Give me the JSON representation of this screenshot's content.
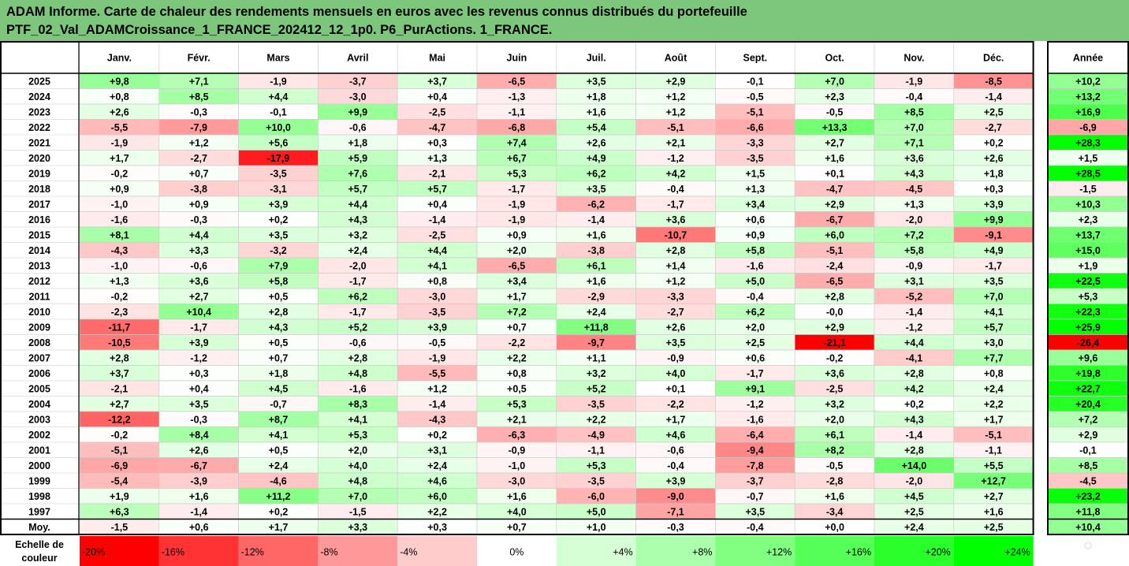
{
  "title": {
    "line1": "ADAM Informe. Carte de chaleur des rendements mensuels en euros avec les revenus connus distribués du portefeuille",
    "line2": "PTF_02_Val_ADAMCroissance_1_FRANCE_202412_12_1p0. P6_PurActions. 1_FRANCE."
  },
  "colors": {
    "title_bg": "#7dc77d",
    "strong_red": "#ff0000",
    "neutral": "#ffffff",
    "strong_green": "#00ff00",
    "grid": "#c8c8c8",
    "border": "#000000"
  },
  "chart_data": {
    "type": "heatmap",
    "header_corner": "",
    "months": [
      "Janv.",
      "Févr.",
      "Mars",
      "Avril",
      "Mai",
      "Juin",
      "Juil.",
      "Août",
      "Sept.",
      "Oct.",
      "Nov.",
      "Déc."
    ],
    "annual_label": "Année",
    "average_label": "Moy.",
    "color_scale_min": -20,
    "color_scale_max": 24,
    "rows": [
      {
        "year": "2025",
        "months": [
          "+9,8",
          "+7,1",
          "-1,9",
          "-3,7",
          "+3,7",
          "-6,5",
          "+3,5",
          "+2,9",
          "-0,1",
          "+7,0",
          "-1,9",
          "-8,5"
        ],
        "annual": "+10,2"
      },
      {
        "year": "2024",
        "months": [
          "+0,8",
          "+8,5",
          "+4,4",
          "-3,0",
          "+0,4",
          "-1,3",
          "+1,8",
          "+1,2",
          "-0,5",
          "+2,3",
          "-0,4",
          "-1,4"
        ],
        "annual": "+13,2"
      },
      {
        "year": "2023",
        "months": [
          "+2,6",
          "-0,3",
          "-0,1",
          "+9,9",
          "-2,5",
          "-1,1",
          "+1,6",
          "+1,2",
          "-5,1",
          "-0,5",
          "+8,5",
          "+2,5"
        ],
        "annual": "+16,9"
      },
      {
        "year": "2022",
        "months": [
          "-5,5",
          "-7,9",
          "+10,0",
          "-0,6",
          "-4,7",
          "-6,8",
          "+5,4",
          "-5,1",
          "-6,6",
          "+13,3",
          "+7,0",
          "-2,7"
        ],
        "annual": "-6,9"
      },
      {
        "year": "2021",
        "months": [
          "-1,9",
          "+1,2",
          "+5,6",
          "+1,8",
          "+0,3",
          "+7,4",
          "+2,6",
          "+2,1",
          "-3,3",
          "+2,7",
          "+7,1",
          "+0,2"
        ],
        "annual": "+28,3"
      },
      {
        "year": "2020",
        "months": [
          "+1,7",
          "-2,7",
          "-17,9",
          "+5,9",
          "+1,3",
          "+6,7",
          "+4,9",
          "-1,2",
          "-3,5",
          "+1,6",
          "+3,6",
          "+2,6"
        ],
        "annual": "+1,5"
      },
      {
        "year": "2019",
        "months": [
          "-0,2",
          "+0,7",
          "-3,5",
          "+7,6",
          "-2,1",
          "+5,3",
          "+6,2",
          "+4,2",
          "+1,5",
          "+0,1",
          "+4,3",
          "+1,8"
        ],
        "annual": "+28,5"
      },
      {
        "year": "2018",
        "months": [
          "+0,9",
          "-3,8",
          "-3,1",
          "+5,7",
          "+5,7",
          "-1,7",
          "+3,5",
          "-0,4",
          "+1,3",
          "-4,7",
          "-4,5",
          "+0,3"
        ],
        "annual": "-1,5"
      },
      {
        "year": "2017",
        "months": [
          "-1,0",
          "+0,9",
          "+3,9",
          "+4,4",
          "+0,4",
          "-1,9",
          "-6,2",
          "-1,7",
          "+3,4",
          "+2,9",
          "+1,3",
          "+3,9"
        ],
        "annual": "+10,3"
      },
      {
        "year": "2016",
        "months": [
          "-1,6",
          "-0,3",
          "+0,2",
          "+4,3",
          "-1,4",
          "-1,9",
          "-1,4",
          "+3,6",
          "+0,6",
          "-6,7",
          "-2,0",
          "+9,9"
        ],
        "annual": "+2,3"
      },
      {
        "year": "2015",
        "months": [
          "+8,1",
          "+4,4",
          "+3,5",
          "+3,2",
          "-2,5",
          "+0,9",
          "+1,6",
          "-10,7",
          "+0,9",
          "+6,0",
          "+7,2",
          "-9,1"
        ],
        "annual": "+13,7"
      },
      {
        "year": "2014",
        "months": [
          "-4,3",
          "+3,3",
          "-3,2",
          "+2,4",
          "+4,4",
          "+2,0",
          "-3,8",
          "+2,8",
          "+5,8",
          "-5,1",
          "+5,8",
          "+4,9"
        ],
        "annual": "+15,0"
      },
      {
        "year": "2013",
        "months": [
          "-1,0",
          "-0,6",
          "+7,9",
          "-2,0",
          "+4,1",
          "-6,5",
          "+6,1",
          "+1,4",
          "-1,6",
          "-2,4",
          "-0,9",
          "-1,7"
        ],
        "annual": "+1,9"
      },
      {
        "year": "2012",
        "months": [
          "+1,3",
          "+3,6",
          "+5,8",
          "-1,7",
          "+0,8",
          "+3,4",
          "+1,6",
          "+1,2",
          "+5,0",
          "-6,5",
          "+3,1",
          "+3,5"
        ],
        "annual": "+22,5"
      },
      {
        "year": "2011",
        "months": [
          "-0,2",
          "+2,7",
          "+0,5",
          "+6,2",
          "-3,0",
          "+1,7",
          "-2,9",
          "-3,3",
          "-0,4",
          "+2,8",
          "-5,2",
          "+7,0"
        ],
        "annual": "+5,3"
      },
      {
        "year": "2010",
        "months": [
          "-2,3",
          "+10,4",
          "+2,8",
          "-1,7",
          "-3,5",
          "+7,2",
          "+2,4",
          "-2,7",
          "+6,2",
          "-0,0",
          "-1,4",
          "+4,1"
        ],
        "annual": "+22,3"
      },
      {
        "year": "2009",
        "months": [
          "-11,7",
          "-1,7",
          "+4,3",
          "+5,2",
          "+3,9",
          "+0,7",
          "+11,8",
          "+2,6",
          "+2,0",
          "+2,9",
          "-1,2",
          "+5,7"
        ],
        "annual": "+25,9"
      },
      {
        "year": "2008",
        "months": [
          "-10,5",
          "+3,9",
          "+0,5",
          "-0,6",
          "-0,5",
          "-2,2",
          "-9,7",
          "+3,5",
          "+2,5",
          "-21,1",
          "+4,4",
          "+3,0"
        ],
        "annual": "-26,4"
      },
      {
        "year": "2007",
        "months": [
          "+2,8",
          "-1,2",
          "+0,7",
          "+2,8",
          "-1,9",
          "+2,2",
          "+1,1",
          "-0,9",
          "+0,6",
          "-0,2",
          "-4,1",
          "+7,7"
        ],
        "annual": "+9,6"
      },
      {
        "year": "2006",
        "months": [
          "+3,7",
          "+0,3",
          "+1,8",
          "+4,8",
          "-5,5",
          "+0,8",
          "+3,2",
          "+4,0",
          "-1,7",
          "+3,6",
          "+2,8",
          "+0,8"
        ],
        "annual": "+19,8"
      },
      {
        "year": "2005",
        "months": [
          "-2,1",
          "+0,4",
          "+4,5",
          "-1,6",
          "+1,2",
          "+0,5",
          "+5,2",
          "+0,1",
          "+9,1",
          "-2,5",
          "+4,2",
          "+2,4"
        ],
        "annual": "+22,7"
      },
      {
        "year": "2004",
        "months": [
          "+2,7",
          "+3,5",
          "-0,7",
          "+8,3",
          "-1,4",
          "+5,3",
          "-3,5",
          "-2,2",
          "-1,2",
          "+3,2",
          "+0,2",
          "+2,2"
        ],
        "annual": "+20,4"
      },
      {
        "year": "2003",
        "months": [
          "-12,2",
          "-0,3",
          "+8,7",
          "+4,1",
          "-4,3",
          "+2,1",
          "+2,2",
          "+1,7",
          "-1,6",
          "+2,0",
          "+4,3",
          "+1,7"
        ],
        "annual": "+7,2"
      },
      {
        "year": "2002",
        "months": [
          "-0,2",
          "+8,4",
          "+4,1",
          "+5,3",
          "+0,2",
          "-6,3",
          "-4,9",
          "+4,6",
          "-6,4",
          "+6,1",
          "-1,4",
          "-5,1"
        ],
        "annual": "+2,9"
      },
      {
        "year": "2001",
        "months": [
          "-5,1",
          "+2,6",
          "+0,5",
          "+2,0",
          "+3,1",
          "-0,9",
          "-1,1",
          "-0,6",
          "-9,4",
          "+8,2",
          "+2,8",
          "-1,1"
        ],
        "annual": "-0,1"
      },
      {
        "year": "2000",
        "months": [
          "-6,9",
          "-6,7",
          "+2,4",
          "+4,0",
          "+2,4",
          "-1,0",
          "+5,3",
          "-0,4",
          "-7,8",
          "-0,5",
          "+14,0",
          "+5,5"
        ],
        "annual": "+8,5"
      },
      {
        "year": "1999",
        "months": [
          "-5,4",
          "-3,9",
          "-4,6",
          "+4,8",
          "+4,6",
          "-3,0",
          "-3,5",
          "+3,9",
          "-3,7",
          "-2,8",
          "-2,0",
          "+12,7"
        ],
        "annual": "-4,5"
      },
      {
        "year": "1998",
        "months": [
          "+1,9",
          "+1,6",
          "+11,2",
          "+7,0",
          "+6,0",
          "+1,6",
          "-6,0",
          "-9,0",
          "-0,7",
          "+1,6",
          "+4,5",
          "+2,7"
        ],
        "annual": "+23,2"
      },
      {
        "year": "1997",
        "months": [
          "+6,3",
          "-1,4",
          "+0,2",
          "-1,5",
          "+2,2",
          "+4,0",
          "+5,0",
          "-7,1",
          "+3,5",
          "-3,4",
          "+2,5",
          "+1,6"
        ],
        "annual": "+11,8"
      }
    ],
    "average": {
      "months": [
        "-1,5",
        "+0,6",
        "+1,7",
        "+3,3",
        "+0,3",
        "+0,7",
        "+1,0",
        "-0,3",
        "-0,4",
        "+0,0",
        "+2,4",
        "+2,5"
      ],
      "annual": "+10,4"
    },
    "scale": {
      "label_line1": "Echelle de",
      "label_line2": "couleur",
      "values": [
        -20,
        -16,
        -12,
        -8,
        -4,
        0,
        4,
        8,
        12,
        16,
        20,
        24
      ],
      "labels": [
        "-20%",
        "-16%",
        "-12%",
        "-8%",
        "-4%",
        "0%",
        "+4%",
        "+8%",
        "+12%",
        "+16%",
        "+20%",
        "+24%"
      ]
    }
  }
}
